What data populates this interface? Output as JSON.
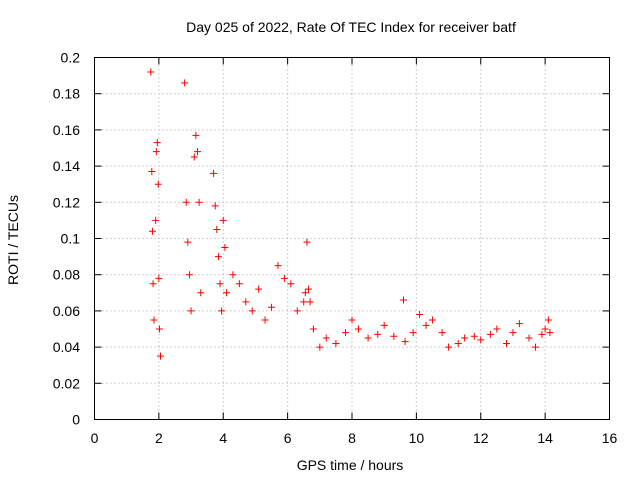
{
  "chart_data": {
    "type": "scatter",
    "title": "Day 025 of 2022, Rate Of TEC Index for receiver batf",
    "xlabel": "GPS time / hours",
    "ylabel": "ROTI / TECUs",
    "xlim": [
      0,
      16
    ],
    "ylim": [
      0,
      0.2
    ],
    "xticks": [
      "0",
      "2",
      "4",
      "6",
      "8",
      "10",
      "12",
      "14",
      "16"
    ],
    "yticks": [
      "0",
      "0.02",
      "0.04",
      "0.06",
      "0.08",
      "0.1",
      "0.12",
      "0.14",
      "0.16",
      "0.18",
      "0.2"
    ],
    "grid": true,
    "marker": "+",
    "color": "#ff0000",
    "series": [
      {
        "x": [
          1.75,
          1.78,
          1.8,
          1.82,
          1.85,
          1.9,
          1.92,
          1.95,
          1.98,
          2.0,
          2.02,
          2.05,
          2.8,
          2.85,
          2.9,
          2.95,
          3.0,
          3.1,
          3.15,
          3.2,
          3.25,
          3.3,
          3.7,
          3.75,
          3.8,
          3.85,
          3.9,
          3.95,
          4.0,
          4.05,
          4.1,
          4.3,
          4.5,
          4.7,
          4.9,
          5.1,
          5.3,
          5.5,
          5.7,
          5.9,
          6.1,
          6.3,
          6.5,
          6.55,
          6.6,
          6.65,
          6.7,
          6.8,
          7.0,
          7.2,
          7.5,
          7.8,
          8.0,
          8.2,
          8.5,
          8.8,
          9.0,
          9.3,
          9.6,
          9.65,
          9.9,
          10.1,
          10.3,
          10.5,
          10.8,
          11.0,
          11.3,
          11.5,
          11.8,
          12.0,
          12.3,
          12.5,
          12.8,
          13.0,
          13.2,
          13.5,
          13.7,
          13.9,
          14.0,
          14.1,
          14.15
        ],
        "y": [
          0.192,
          0.137,
          0.104,
          0.075,
          0.055,
          0.11,
          0.148,
          0.153,
          0.13,
          0.078,
          0.05,
          0.035,
          0.186,
          0.12,
          0.098,
          0.08,
          0.06,
          0.145,
          0.157,
          0.148,
          0.12,
          0.07,
          0.136,
          0.118,
          0.105,
          0.09,
          0.075,
          0.06,
          0.11,
          0.095,
          0.07,
          0.08,
          0.075,
          0.065,
          0.06,
          0.072,
          0.055,
          0.062,
          0.085,
          0.078,
          0.075,
          0.06,
          0.065,
          0.07,
          0.098,
          0.072,
          0.065,
          0.05,
          0.04,
          0.045,
          0.042,
          0.048,
          0.055,
          0.05,
          0.045,
          0.047,
          0.052,
          0.046,
          0.066,
          0.043,
          0.048,
          0.058,
          0.052,
          0.055,
          0.048,
          0.04,
          0.042,
          0.045,
          0.046,
          0.044,
          0.047,
          0.05,
          0.042,
          0.048,
          0.053,
          0.045,
          0.04,
          0.047,
          0.05,
          0.055,
          0.048
        ]
      }
    ]
  }
}
